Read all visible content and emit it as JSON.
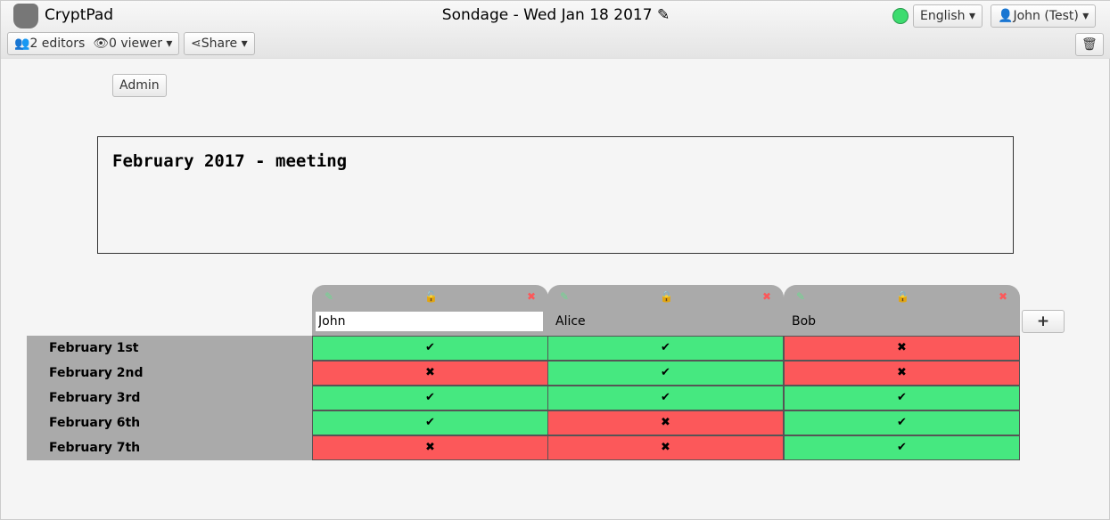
{
  "app": {
    "name": "CryptPad",
    "title": "Sondage - Wed Jan 18 2017"
  },
  "toolbar": {
    "editors": "2 editors",
    "viewers": "0 viewer",
    "share": "Share",
    "language": "English",
    "user": "John (Test)"
  },
  "admin_label": "Admin",
  "pad_title": "February 2017 - meeting",
  "colors": {
    "yes": "#46e880",
    "no": "#fc585a",
    "status": "#3ddc6f"
  },
  "columns": [
    {
      "name": "John",
      "locked": false,
      "editing": true
    },
    {
      "name": "Alice",
      "locked": true
    },
    {
      "name": "Bob",
      "locked": true
    }
  ],
  "rows": [
    "February 1st",
    "February 2nd",
    "February 3rd",
    "February 6th",
    "February 7th"
  ],
  "votes": [
    [
      true,
      true,
      false
    ],
    [
      false,
      true,
      false
    ],
    [
      true,
      true,
      true
    ],
    [
      true,
      false,
      true
    ],
    [
      false,
      false,
      true
    ]
  ],
  "symbols": {
    "yes": "✔",
    "no": "✖",
    "add": "+"
  }
}
